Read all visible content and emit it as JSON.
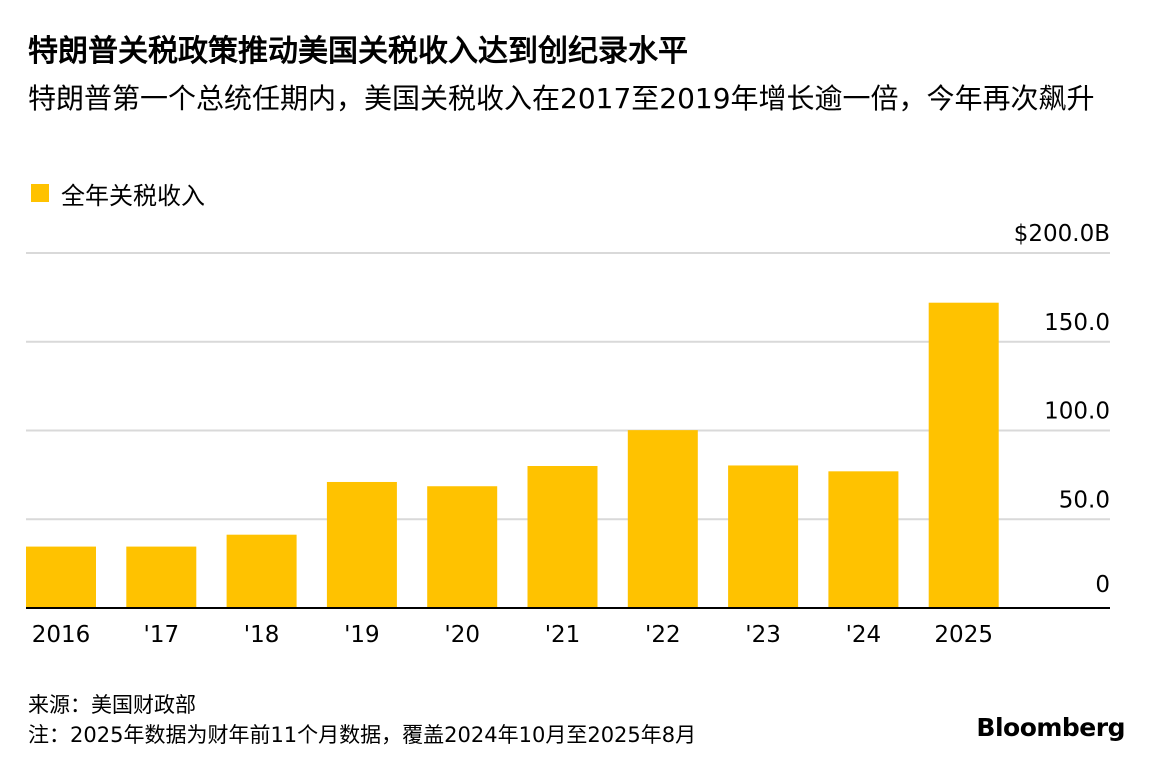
{
  "title": "特朗普关税政策推动美国关税收入达到创纪录水平",
  "subtitle": "特朗普第一个总统任期内，美国关税收入在2017至2019年增长逾一倍，今年再次飙升",
  "footer": {
    "source": "来源：美国财政部",
    "note": "注：2025年数据为财年前11个月数据，覆盖2024年10月至2025年8月",
    "brand": "Bloomberg"
  },
  "chart_data": {
    "type": "bar",
    "categories": [
      "2016",
      "'17",
      "'18",
      "'19",
      "'20",
      "'21",
      "'22",
      "'23",
      "'24",
      "2025"
    ],
    "series": [
      {
        "name": "全年关税收入",
        "values": [
          34.6,
          34.6,
          41.3,
          71.0,
          68.6,
          80.0,
          100.2,
          80.3,
          77.0,
          172.0
        ],
        "color": "#FFC200"
      }
    ],
    "ylim": [
      0,
      200
    ],
    "yticks": [
      0,
      50,
      100,
      150,
      200
    ],
    "ytick_labels": [
      "0",
      "50.0",
      "100.0",
      "150.0",
      "$200.0B"
    ],
    "grid": true,
    "y_axis_side": "right",
    "legend_position": "top-left"
  }
}
